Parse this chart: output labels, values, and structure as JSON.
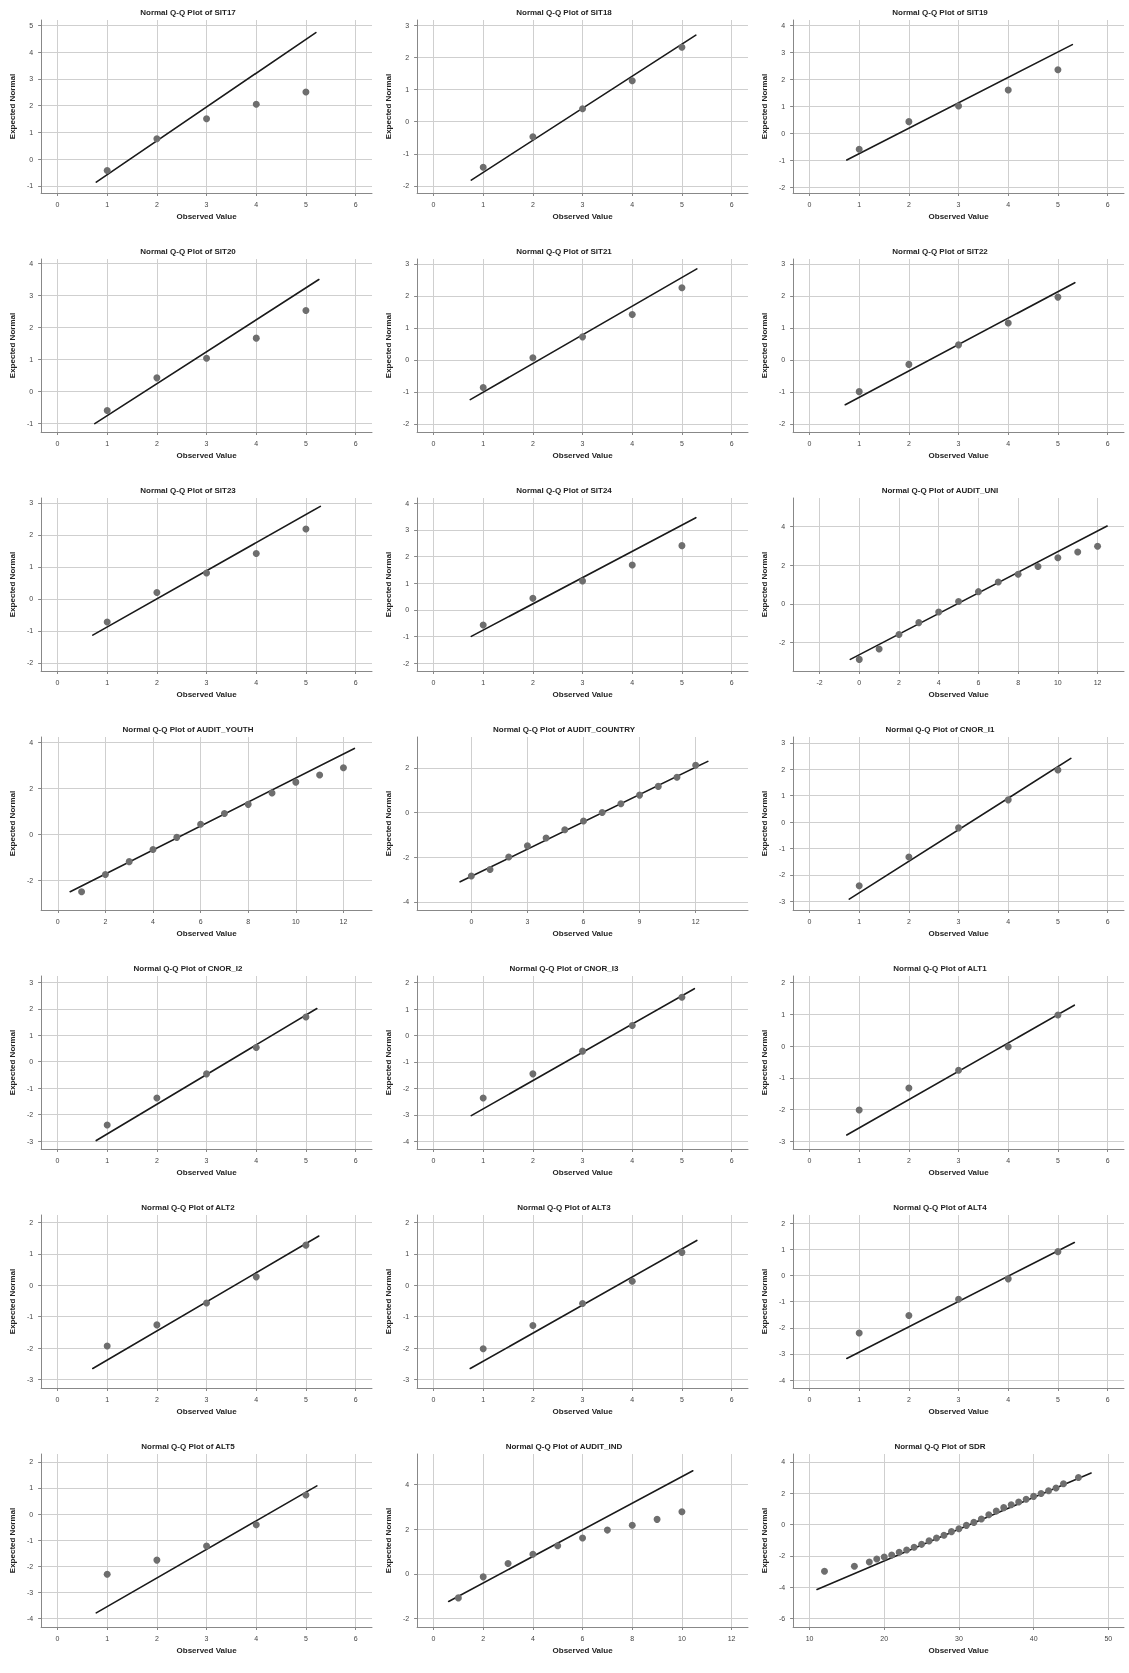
{
  "chart_data": [
    {
      "type": "scatter",
      "title": "Normal Q-Q Plot of SIT17",
      "xlabel": "Observed Value",
      "ylabel": "Expected Normal",
      "xlim": [
        -0.33,
        6.33
      ],
      "xticks": [
        0,
        1,
        2,
        3,
        4,
        5,
        6
      ],
      "ylim": [
        -1.27,
        5.2
      ],
      "yticks": [
        -1,
        0,
        1,
        2,
        3,
        4,
        5
      ],
      "grid": true,
      "marker": "circle",
      "series": [
        {
          "color": "#6e6e6e",
          "x": [
            1,
            2,
            3,
            4,
            5
          ],
          "values": [
            -0.43,
            0.76,
            1.51,
            2.05,
            2.51
          ]
        },
        {
          "type": "line",
          "color": "#1a1a1a",
          "marker": "none",
          "x": [
            0.78,
            5.2
          ],
          "values": [
            -0.86,
            4.73
          ]
        }
      ]
    },
    {
      "type": "scatter",
      "title": "Normal Q-Q Plot of SIT18",
      "xlabel": "Observed Value",
      "ylabel": "Expected Normal",
      "xlim": [
        -0.33,
        6.33
      ],
      "xticks": [
        0,
        1,
        2,
        3,
        4,
        5,
        6
      ],
      "ylim": [
        -2.22,
        3.16
      ],
      "yticks": [
        -2,
        -1,
        0,
        1,
        2,
        3
      ],
      "grid": true,
      "marker": "circle",
      "series": [
        {
          "color": "#6e6e6e",
          "x": [
            1,
            2,
            3,
            4,
            5
          ],
          "values": [
            -1.42,
            -0.47,
            0.4,
            1.27,
            2.31
          ]
        },
        {
          "type": "line",
          "color": "#1a1a1a",
          "marker": "none",
          "x": [
            0.76,
            5.28
          ],
          "values": [
            -1.82,
            2.69
          ]
        }
      ]
    },
    {
      "type": "scatter",
      "title": "Normal Q-Q Plot of SIT19",
      "xlabel": "Observed Value",
      "ylabel": "Expected Normal",
      "xlim": [
        -0.33,
        6.33
      ],
      "xticks": [
        0,
        1,
        2,
        3,
        4,
        5,
        6
      ],
      "ylim": [
        -2.21,
        4.19
      ],
      "yticks": [
        -2,
        -1,
        0,
        1,
        2,
        3,
        4
      ],
      "grid": true,
      "marker": "circle",
      "series": [
        {
          "color": "#6e6e6e",
          "x": [
            1,
            2,
            3,
            4,
            5
          ],
          "values": [
            -0.59,
            0.43,
            1.01,
            1.6,
            2.35
          ]
        },
        {
          "type": "line",
          "color": "#1a1a1a",
          "marker": "none",
          "x": [
            0.75,
            5.29
          ],
          "values": [
            -0.99,
            3.28
          ]
        }
      ]
    },
    {
      "type": "scatter",
      "title": "Normal Q-Q Plot of SIT20",
      "xlabel": "Observed Value",
      "ylabel": "Expected Normal",
      "xlim": [
        -0.33,
        6.33
      ],
      "xticks": [
        0,
        1,
        2,
        3,
        4,
        5,
        6
      ],
      "ylim": [
        -1.26,
        4.14
      ],
      "yticks": [
        -1,
        0,
        1,
        2,
        3,
        4
      ],
      "grid": true,
      "marker": "circle",
      "series": [
        {
          "color": "#6e6e6e",
          "x": [
            1,
            2,
            3,
            4,
            5
          ],
          "values": [
            -0.59,
            0.43,
            1.04,
            1.67,
            2.53
          ]
        },
        {
          "type": "line",
          "color": "#1a1a1a",
          "marker": "none",
          "x": [
            0.75,
            5.26
          ],
          "values": [
            -1.0,
            3.5
          ]
        }
      ]
    },
    {
      "type": "scatter",
      "title": "Normal Q-Q Plot of SIT21",
      "xlabel": "Observed Value",
      "ylabel": "Expected Normal",
      "xlim": [
        -0.33,
        6.33
      ],
      "xticks": [
        0,
        1,
        2,
        3,
        4,
        5,
        6
      ],
      "ylim": [
        -2.25,
        3.15
      ],
      "yticks": [
        -2,
        -1,
        0,
        1,
        2,
        3
      ],
      "grid": true,
      "marker": "circle",
      "series": [
        {
          "color": "#6e6e6e",
          "x": [
            1,
            2,
            3,
            4,
            5
          ],
          "values": [
            -0.86,
            0.07,
            0.72,
            1.42,
            2.25
          ]
        },
        {
          "type": "line",
          "color": "#1a1a1a",
          "marker": "none",
          "x": [
            0.74,
            5.3
          ],
          "values": [
            -1.24,
            2.84
          ]
        }
      ]
    },
    {
      "type": "scatter",
      "title": "Normal Q-Q Plot of SIT22",
      "xlabel": "Observed Value",
      "ylabel": "Expected Normal",
      "xlim": [
        -0.33,
        6.33
      ],
      "xticks": [
        0,
        1,
        2,
        3,
        4,
        5,
        6
      ],
      "ylim": [
        -2.25,
        3.15
      ],
      "yticks": [
        -2,
        -1,
        0,
        1,
        2,
        3
      ],
      "grid": true,
      "marker": "circle",
      "series": [
        {
          "color": "#6e6e6e",
          "x": [
            1,
            2,
            3,
            4,
            5
          ],
          "values": [
            -0.99,
            -0.14,
            0.47,
            1.15,
            1.96
          ]
        },
        {
          "type": "line",
          "color": "#1a1a1a",
          "marker": "none",
          "x": [
            0.72,
            5.34
          ],
          "values": [
            -1.4,
            2.41
          ]
        }
      ]
    },
    {
      "type": "scatter",
      "title": "Normal Q-Q Plot of SIT23",
      "xlabel": "Observed Value",
      "ylabel": "Expected Normal",
      "xlim": [
        -0.33,
        6.33
      ],
      "xticks": [
        0,
        1,
        2,
        3,
        4,
        5,
        6
      ],
      "ylim": [
        -2.25,
        3.15
      ],
      "yticks": [
        -2,
        -1,
        0,
        1,
        2,
        3
      ],
      "grid": true,
      "marker": "circle",
      "series": [
        {
          "color": "#6e6e6e",
          "x": [
            1,
            2,
            3,
            4,
            5
          ],
          "values": [
            -0.72,
            0.2,
            0.81,
            1.42,
            2.18
          ]
        },
        {
          "type": "line",
          "color": "#1a1a1a",
          "marker": "none",
          "x": [
            0.71,
            5.29
          ],
          "values": [
            -1.13,
            2.89
          ]
        }
      ]
    },
    {
      "type": "scatter",
      "title": "Normal Q-Q Plot of SIT24",
      "xlabel": "Observed Value",
      "ylabel": "Expected Normal",
      "xlim": [
        -0.33,
        6.33
      ],
      "xticks": [
        0,
        1,
        2,
        3,
        4,
        5,
        6
      ],
      "ylim": [
        -2.3,
        4.2
      ],
      "yticks": [
        -2,
        -1,
        0,
        1,
        2,
        3,
        4
      ],
      "grid": true,
      "marker": "circle",
      "series": [
        {
          "color": "#6e6e6e",
          "x": [
            1,
            2,
            3,
            4,
            5
          ],
          "values": [
            -0.57,
            0.43,
            1.08,
            1.68,
            2.41
          ]
        },
        {
          "type": "line",
          "color": "#1a1a1a",
          "marker": "none",
          "x": [
            0.76,
            5.28
          ],
          "values": [
            -1.0,
            3.46
          ]
        }
      ]
    },
    {
      "type": "scatter",
      "title": "Normal Q-Q Plot of AUDIT_UNI",
      "xlabel": "Observed Value",
      "ylabel": "Expected Normal",
      "xlim": [
        -3.33,
        13.33
      ],
      "xticks": [
        -2,
        0,
        2,
        4,
        6,
        8,
        10,
        12
      ],
      "ylim": [
        -3.47,
        5.47
      ],
      "yticks": [
        -2,
        0,
        2,
        4
      ],
      "grid": true,
      "marker": "circle",
      "series": [
        {
          "color": "#6e6e6e",
          "x": [
            0,
            1,
            2,
            3,
            4,
            5,
            6,
            7,
            8,
            9,
            10,
            11,
            12
          ],
          "values": [
            -2.87,
            -2.33,
            -1.58,
            -0.97,
            -0.42,
            0.12,
            0.63,
            1.13,
            1.53,
            1.93,
            2.38,
            2.68,
            2.98
          ]
        },
        {
          "type": "line",
          "color": "#1a1a1a",
          "marker": "none",
          "x": [
            -0.45,
            12.48
          ],
          "values": [
            -2.87,
            4.02
          ]
        }
      ]
    },
    {
      "type": "scatter",
      "title": "Normal Q-Q Plot of AUDIT_YOUTH",
      "xlabel": "Observed Value",
      "ylabel": "Expected Normal",
      "xlim": [
        -0.7,
        13.2
      ],
      "xticks": [
        0,
        2,
        4,
        6,
        8,
        10,
        12
      ],
      "ylim": [
        -3.3,
        4.25
      ],
      "yticks": [
        -2,
        0,
        2,
        4
      ],
      "grid": true,
      "marker": "circle",
      "series": [
        {
          "color": "#6e6e6e",
          "x": [
            1,
            2,
            3,
            4,
            5,
            6,
            7,
            8,
            9,
            10,
            11,
            12
          ],
          "values": [
            -2.5,
            -1.75,
            -1.19,
            -0.66,
            -0.13,
            0.44,
            0.91,
            1.31,
            1.81,
            2.28,
            2.59,
            2.91
          ]
        },
        {
          "type": "line",
          "color": "#1a1a1a",
          "marker": "none",
          "x": [
            0.52,
            12.46
          ],
          "values": [
            -2.5,
            3.75
          ]
        }
      ]
    },
    {
      "type": "scatter",
      "title": "Normal Q-Q Plot of AUDIT_COUNTRY",
      "xlabel": "Observed Value",
      "ylabel": "Expected Normal",
      "xlim": [
        -2.9,
        14.8
      ],
      "xticks": [
        0,
        3,
        6,
        9,
        12
      ],
      "ylim": [
        -4.36,
        3.38
      ],
      "yticks": [
        -4,
        -2,
        0,
        2
      ],
      "grid": true,
      "marker": "circle",
      "series": [
        {
          "color": "#6e6e6e",
          "x": [
            0,
            1,
            2,
            3,
            4,
            5,
            6,
            7,
            8,
            9,
            10,
            11,
            12
          ],
          "values": [
            -2.84,
            -2.55,
            -1.99,
            -1.49,
            -1.14,
            -0.77,
            -0.38,
            0,
            0.39,
            0.78,
            1.17,
            1.58,
            2.12
          ]
        },
        {
          "type": "line",
          "color": "#1a1a1a",
          "marker": "none",
          "x": [
            -0.6,
            12.65
          ],
          "values": [
            -3.1,
            2.29
          ]
        }
      ]
    },
    {
      "type": "scatter",
      "title": "Normal Q-Q Plot of CNOR_I1",
      "xlabel": "Observed Value",
      "ylabel": "Expected Normal",
      "xlim": [
        -0.33,
        6.33
      ],
      "xticks": [
        0,
        1,
        2,
        3,
        4,
        5,
        6
      ],
      "ylim": [
        -3.33,
        3.22
      ],
      "yticks": [
        -3,
        -2,
        -1,
        0,
        1,
        2,
        3
      ],
      "grid": true,
      "marker": "circle",
      "series": [
        {
          "color": "#6e6e6e",
          "x": [
            1,
            2,
            3,
            4,
            5
          ],
          "values": [
            -2.41,
            -1.32,
            -0.22,
            0.84,
            1.97
          ]
        },
        {
          "type": "line",
          "color": "#1a1a1a",
          "marker": "none",
          "x": [
            0.8,
            5.26
          ],
          "values": [
            -2.92,
            2.41
          ]
        }
      ]
    },
    {
      "type": "scatter",
      "title": "Normal Q-Q Plot of CNOR_I2",
      "xlabel": "Observed Value",
      "ylabel": "Expected Normal",
      "xlim": [
        -0.33,
        6.33
      ],
      "xticks": [
        0,
        1,
        2,
        3,
        4,
        5,
        6
      ],
      "ylim": [
        -3.3,
        3.24
      ],
      "yticks": [
        -3,
        -2,
        -1,
        0,
        1,
        2,
        3
      ],
      "grid": true,
      "marker": "circle",
      "series": [
        {
          "color": "#6e6e6e",
          "x": [
            1,
            2,
            3,
            4,
            5
          ],
          "values": [
            -2.39,
            -1.37,
            -0.46,
            0.54,
            1.69
          ]
        },
        {
          "type": "line",
          "color": "#1a1a1a",
          "marker": "none",
          "x": [
            0.78,
            5.22
          ],
          "values": [
            -2.98,
            2.01
          ]
        }
      ]
    },
    {
      "type": "scatter",
      "title": "Normal Q-Q Plot of CNOR_I3",
      "xlabel": "Observed Value",
      "ylabel": "Expected Normal",
      "xlim": [
        -0.33,
        6.33
      ],
      "xticks": [
        0,
        1,
        2,
        3,
        4,
        5,
        6
      ],
      "ylim": [
        -4.29,
        2.25
      ],
      "yticks": [
        -4,
        -3,
        -2,
        -1,
        0,
        1,
        2
      ],
      "grid": true,
      "marker": "circle",
      "series": [
        {
          "color": "#6e6e6e",
          "x": [
            1,
            2,
            3,
            4,
            5
          ],
          "values": [
            -2.36,
            -1.45,
            -0.59,
            0.38,
            1.45
          ]
        },
        {
          "type": "line",
          "color": "#1a1a1a",
          "marker": "none",
          "x": [
            0.76,
            5.25
          ],
          "values": [
            -3.03,
            1.77
          ]
        }
      ]
    },
    {
      "type": "scatter",
      "title": "Normal Q-Q Plot of ALT1",
      "xlabel": "Observed Value",
      "ylabel": "Expected Normal",
      "xlim": [
        -0.33,
        6.33
      ],
      "xticks": [
        0,
        1,
        2,
        3,
        4,
        5,
        6
      ],
      "ylim": [
        -3.24,
        2.21
      ],
      "yticks": [
        -3,
        -2,
        -1,
        0,
        1,
        2
      ],
      "grid": true,
      "marker": "circle",
      "series": [
        {
          "color": "#6e6e6e",
          "x": [
            1,
            2,
            3,
            4,
            5
          ],
          "values": [
            -2.01,
            -1.32,
            -0.76,
            -0.02,
            0.98
          ]
        },
        {
          "type": "line",
          "color": "#1a1a1a",
          "marker": "none",
          "x": [
            0.75,
            5.33
          ],
          "values": [
            -2.8,
            1.29
          ]
        }
      ]
    },
    {
      "type": "scatter",
      "title": "Normal Q-Q Plot of ALT2",
      "xlabel": "Observed Value",
      "ylabel": "Expected Normal",
      "xlim": [
        -0.33,
        6.33
      ],
      "xticks": [
        0,
        1,
        2,
        3,
        4,
        5,
        6
      ],
      "ylim": [
        -3.27,
        2.24
      ],
      "yticks": [
        -3,
        -2,
        -1,
        0,
        1,
        2
      ],
      "grid": true,
      "marker": "circle",
      "series": [
        {
          "color": "#6e6e6e",
          "x": [
            1,
            2,
            3,
            4,
            5
          ],
          "values": [
            -1.93,
            -1.26,
            -0.56,
            0.27,
            1.28
          ]
        },
        {
          "type": "line",
          "color": "#1a1a1a",
          "marker": "none",
          "x": [
            0.71,
            5.26
          ],
          "values": [
            -2.65,
            1.57
          ]
        }
      ]
    },
    {
      "type": "scatter",
      "title": "Normal Q-Q Plot of ALT3",
      "xlabel": "Observed Value",
      "ylabel": "Expected Normal",
      "xlim": [
        -0.33,
        6.33
      ],
      "xticks": [
        0,
        1,
        2,
        3,
        4,
        5,
        6
      ],
      "ylim": [
        -3.27,
        2.24
      ],
      "yticks": [
        -3,
        -2,
        -1,
        0,
        1,
        2
      ],
      "grid": true,
      "marker": "circle",
      "series": [
        {
          "color": "#6e6e6e",
          "x": [
            1,
            2,
            3,
            4,
            5
          ],
          "values": [
            -2.02,
            -1.28,
            -0.58,
            0.13,
            1.05
          ]
        },
        {
          "type": "line",
          "color": "#1a1a1a",
          "marker": "none",
          "x": [
            0.74,
            5.3
          ],
          "values": [
            -2.65,
            1.43
          ]
        }
      ]
    },
    {
      "type": "scatter",
      "title": "Normal Q-Q Plot of ALT4",
      "xlabel": "Observed Value",
      "ylabel": "Expected Normal",
      "xlim": [
        -0.33,
        6.33
      ],
      "xticks": [
        0,
        1,
        2,
        3,
        4,
        5,
        6
      ],
      "ylim": [
        -4.3,
        2.31
      ],
      "yticks": [
        -4,
        -3,
        -2,
        -1,
        0,
        1,
        2
      ],
      "grid": true,
      "marker": "circle",
      "series": [
        {
          "color": "#6e6e6e",
          "x": [
            1,
            2,
            3,
            4,
            5
          ],
          "values": [
            -2.2,
            -1.53,
            -0.91,
            -0.13,
            0.91
          ]
        },
        {
          "type": "line",
          "color": "#1a1a1a",
          "marker": "none",
          "x": [
            0.75,
            5.33
          ],
          "values": [
            -3.17,
            1.26
          ]
        }
      ]
    },
    {
      "type": "scatter",
      "title": "Normal Q-Q Plot of ALT5",
      "xlabel": "Observed Value",
      "ylabel": "Expected Normal",
      "xlim": [
        -0.33,
        6.33
      ],
      "xticks": [
        0,
        1,
        2,
        3,
        4,
        5,
        6
      ],
      "ylim": [
        -4.32,
        2.3
      ],
      "yticks": [
        -4,
        -3,
        -2,
        -1,
        0,
        1,
        2
      ],
      "grid": true,
      "marker": "circle",
      "series": [
        {
          "color": "#6e6e6e",
          "x": [
            1,
            2,
            3,
            4,
            5
          ],
          "values": [
            -2.3,
            -1.76,
            -1.22,
            -0.41,
            0.73
          ]
        },
        {
          "type": "line",
          "color": "#1a1a1a",
          "marker": "none",
          "x": [
            0.78,
            5.22
          ],
          "values": [
            -3.78,
            1.08
          ]
        }
      ]
    },
    {
      "type": "scatter",
      "title": "Normal Q-Q Plot of AUDIT_IND",
      "xlabel": "Observed Value",
      "ylabel": "Expected Normal",
      "xlim": [
        -0.66,
        12.66
      ],
      "xticks": [
        0,
        2,
        4,
        6,
        8,
        10,
        12
      ],
      "ylim": [
        -2.37,
        5.36
      ],
      "yticks": [
        -2,
        0,
        2,
        4
      ],
      "grid": true,
      "marker": "circle",
      "series": [
        {
          "color": "#6e6e6e",
          "x": [
            1,
            2,
            3,
            4,
            5,
            6,
            7,
            8,
            9,
            10
          ],
          "values": [
            -1.07,
            -0.13,
            0.47,
            0.88,
            1.26,
            1.61,
            1.96,
            2.18,
            2.44,
            2.78
          ]
        },
        {
          "type": "line",
          "color": "#1a1a1a",
          "marker": "none",
          "x": [
            0.61,
            10.44
          ],
          "values": [
            -1.23,
            4.61
          ]
        }
      ]
    },
    {
      "type": "scatter",
      "title": "Normal Q-Q Plot of SDR",
      "xlabel": "Observed Value",
      "ylabel": "Expected Normal",
      "xlim": [
        7.8,
        52.1
      ],
      "xticks": [
        10,
        20,
        30,
        40,
        50
      ],
      "ylim": [
        -6.53,
        4.5
      ],
      "yticks": [
        -6,
        -4,
        -2,
        0,
        2,
        4
      ],
      "grid": true,
      "marker": "circle",
      "series": [
        {
          "color": "#6e6e6e",
          "x": [
            12,
            16,
            18,
            19,
            20,
            21,
            22,
            23,
            24,
            25,
            26,
            27,
            28,
            29,
            30,
            31,
            32,
            33,
            34,
            35,
            36,
            37,
            38,
            39,
            40,
            41,
            42,
            43,
            44,
            46
          ],
          "values": [
            -2.97,
            -2.66,
            -2.39,
            -2.2,
            -2.07,
            -1.94,
            -1.76,
            -1.62,
            -1.44,
            -1.26,
            -1.04,
            -0.86,
            -0.68,
            -0.45,
            -0.27,
            -0.05,
            0.14,
            0.36,
            0.63,
            0.86,
            1.08,
            1.26,
            1.44,
            1.62,
            1.8,
            1.98,
            2.16,
            2.33,
            2.6,
            3.0
          ]
        },
        {
          "type": "line",
          "color": "#1a1a1a",
          "marker": "none",
          "x": [
            11.0,
            47.7
          ],
          "values": [
            -4.14,
            3.29
          ]
        }
      ]
    }
  ]
}
